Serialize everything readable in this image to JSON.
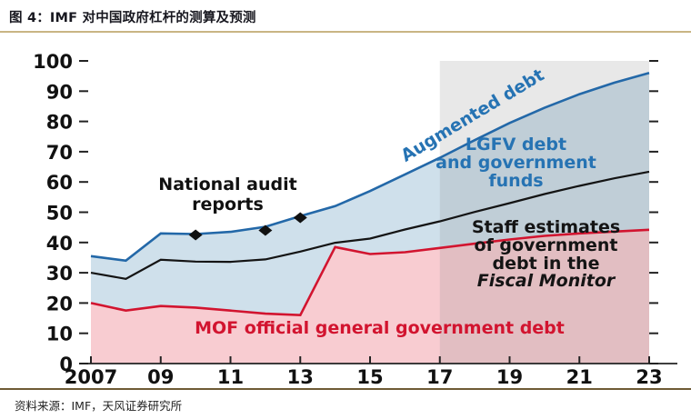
{
  "figure": {
    "title": "图 4：IMF 对中国政府杠杆的测算及预测",
    "source": "资料来源：IMF，天风证券研究所",
    "accent_rule_color": "#c9b584"
  },
  "chart_data": {
    "type": "area",
    "x": [
      2007,
      2008,
      2009,
      2010,
      2011,
      2012,
      2013,
      2014,
      2015,
      2016,
      2017,
      2018,
      2019,
      2020,
      2021,
      2022,
      2023
    ],
    "x_tick_years": [
      2007,
      2009,
      2011,
      2013,
      2015,
      2017,
      2019,
      2021,
      2023
    ],
    "x_tick_labels": [
      "2007",
      "09",
      "11",
      "13",
      "15",
      "17",
      "19",
      "21",
      "23"
    ],
    "y_ticks": [
      0,
      10,
      20,
      30,
      40,
      50,
      60,
      70,
      80,
      90,
      100
    ],
    "ylim": [
      0,
      100
    ],
    "xlim": [
      2007,
      2023
    ],
    "grid": "off",
    "forecast_region": {
      "start": 2017,
      "end": 2023,
      "color": "rgba(125,125,125,0.18)"
    },
    "series": [
      {
        "name": "Augmented debt",
        "color": "#2368a8",
        "area_color": "#cfe0eb",
        "values": [
          35.5,
          34,
          43,
          42.8,
          43.5,
          45.2,
          48.7,
          52,
          57,
          62.5,
          68,
          73.8,
          79.5,
          84.5,
          89,
          92.8,
          96
        ]
      },
      {
        "name": "Staff estimates of government debt in the Fiscal Monitor",
        "color": "#141414",
        "values": [
          30,
          28,
          34.3,
          33.7,
          33.6,
          34.4,
          37,
          39.9,
          41.3,
          44.3,
          47,
          50.1,
          53,
          56,
          58.7,
          61.2,
          63.4
        ]
      },
      {
        "name": "MOF official general government debt",
        "color": "#d2142f",
        "area_color": "#f8ccd1",
        "values": [
          20,
          17.5,
          19,
          18.5,
          17.5,
          16.5,
          16,
          38.5,
          36.2,
          36.8,
          38.2,
          39.6,
          41,
          42.2,
          43,
          43.6,
          44.2
        ]
      }
    ],
    "markers": {
      "label": "National audit reports",
      "color": "#111111",
      "shape": "diamond",
      "points": [
        {
          "year": 2010,
          "value": 42.5
        },
        {
          "year": 2012,
          "value": 44
        },
        {
          "year": 2013,
          "value": 48.2
        }
      ]
    }
  },
  "annotations": {
    "national_audit": "National audit\nreports",
    "augmented": "Augmented debt",
    "lgfv": "LGFV debt\nand government\nfunds",
    "staff_lines": [
      "Staff estimates",
      "of government",
      "debt in the",
      "Fiscal Monitor"
    ],
    "mof": "MOF official general government debt"
  }
}
